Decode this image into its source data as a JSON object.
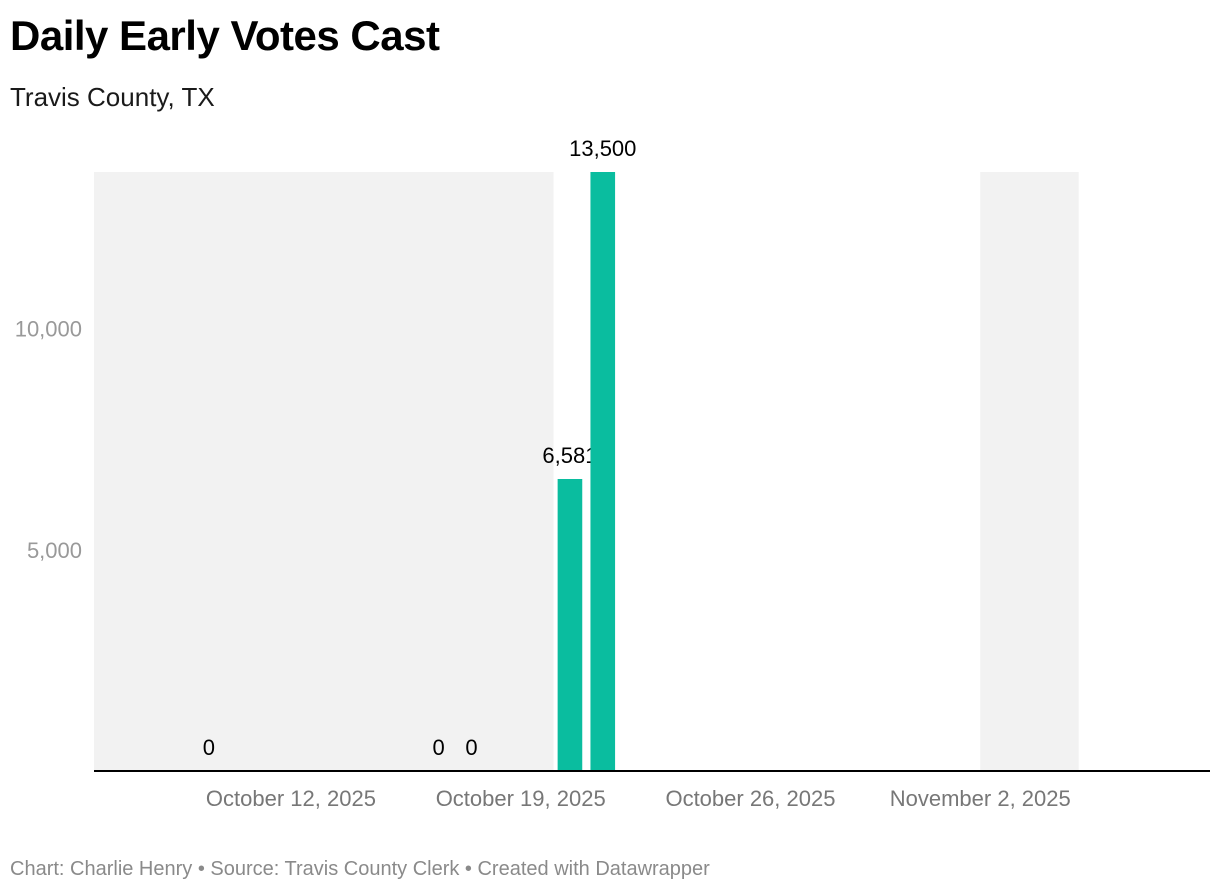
{
  "header": {
    "title": "Daily Early Votes Cast",
    "subtitle": "Travis County, TX"
  },
  "footer": {
    "credit": "Chart: Charlie Henry • Source: Travis County Clerk • Created with Datawrapper"
  },
  "colors": {
    "bar": "#0abd9f",
    "shading": "#f2f2f2",
    "axis_text": "#999999",
    "x_tick_text": "#777777",
    "baseline": "#000000",
    "value_label": "#000000"
  },
  "chart_data": {
    "type": "bar",
    "x_axis": "date",
    "xlim": [
      "2025-10-06",
      "2025-11-09"
    ],
    "ylim": [
      0,
      13500
    ],
    "y_ticks": [
      5000,
      10000
    ],
    "y_tick_labels": [
      "5,000",
      "10,000"
    ],
    "x_ticks": [
      "2025-10-12",
      "2025-10-19",
      "2025-10-26",
      "2025-11-02"
    ],
    "x_tick_labels": [
      "October 12, 2025",
      "October 19, 2025",
      "October 26, 2025",
      "November 2, 2025"
    ],
    "shaded_ranges": [
      {
        "start": "2025-10-06",
        "end": "2025-10-20"
      },
      {
        "start": "2025-11-02",
        "end": "2025-11-05"
      }
    ],
    "points": [
      {
        "date": "2025-10-09",
        "value": 0,
        "label": "0"
      },
      {
        "date": "2025-10-16",
        "value": 0,
        "label": "0"
      },
      {
        "date": "2025-10-17",
        "value": 0,
        "label": "0"
      },
      {
        "date": "2025-10-20",
        "value": 6581,
        "label": "6,581"
      },
      {
        "date": "2025-10-21",
        "value": 13500,
        "label": "13,500"
      }
    ],
    "grid": false
  }
}
